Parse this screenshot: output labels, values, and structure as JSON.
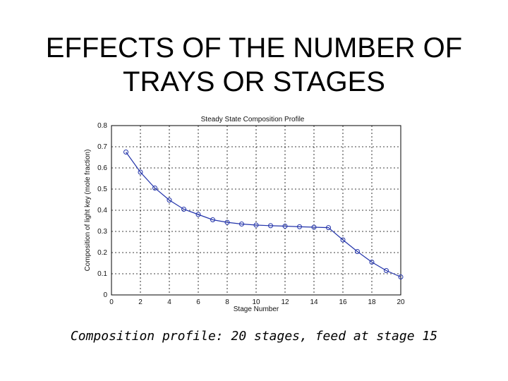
{
  "slide": {
    "title_line1": "EFFECTS OF THE NUMBER OF",
    "title_line2": "TRAYS OR STAGES",
    "caption": "Composition profile: 20 stages, feed at stage 15"
  },
  "chart_data": {
    "type": "line",
    "title": "Steady State Composition Profile",
    "xlabel": "Stage Number",
    "ylabel": "Composition of light key (mole fraction)",
    "xlim": [
      0,
      20
    ],
    "ylim": [
      0,
      0.8
    ],
    "xticks": [
      0,
      2,
      4,
      6,
      8,
      10,
      12,
      14,
      16,
      18,
      20
    ],
    "yticks": [
      0,
      0.1,
      0.2,
      0.3,
      0.4,
      0.5,
      0.6,
      0.7,
      0.8
    ],
    "grid": true,
    "marker": "circle",
    "line_color": "#2233aa",
    "series": [
      {
        "x": [
          1,
          2,
          3,
          4,
          5,
          6,
          7,
          8,
          9,
          10,
          11,
          12,
          13,
          14,
          15,
          16,
          17,
          18,
          19,
          20
        ],
        "values": [
          0.675,
          0.58,
          0.505,
          0.448,
          0.405,
          0.38,
          0.355,
          0.343,
          0.335,
          0.33,
          0.327,
          0.325,
          0.322,
          0.32,
          0.318,
          0.26,
          0.205,
          0.155,
          0.115,
          0.085
        ]
      }
    ]
  }
}
